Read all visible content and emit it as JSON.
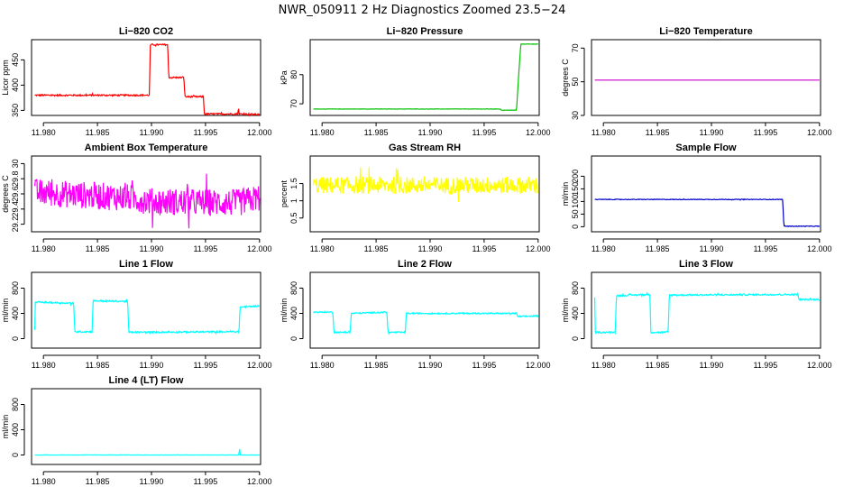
{
  "page": {
    "title": "NWR_050911  2 Hz Diagnostics Zoomed 23.5−24"
  },
  "chart_data": [
    {
      "type": "line",
      "title": "Li−820 CO2",
      "ylabel": "Licor ppm",
      "xlim": [
        11.9789,
        12.0001
      ],
      "ylim": [
        340,
        490
      ],
      "y_ticks": [
        350,
        400,
        450
      ],
      "x_ticks": [
        11.98,
        11.985,
        11.99,
        11.995,
        12.0
      ],
      "x_tick_labels": [
        "11.980",
        "11.985",
        "11.990",
        "11.995",
        "12.000"
      ],
      "color": "#ff0000",
      "noise": 1.5,
      "series": [
        {
          "name": "CO2",
          "points": [
            [
              11.9792,
              380
            ],
            [
              11.9898,
              380
            ],
            [
              11.9899,
              480
            ],
            [
              11.9915,
              480
            ],
            [
              11.9916,
              415
            ],
            [
              11.993,
              415
            ],
            [
              11.9931,
              377
            ],
            [
              11.9948,
              377
            ],
            [
              11.9949,
              343
            ],
            [
              11.998,
              343
            ],
            [
              11.99805,
              358
            ],
            [
              11.9981,
              343
            ],
            [
              12.0,
              342
            ]
          ]
        }
      ]
    },
    {
      "type": "line",
      "title": "Li−820 Pressure",
      "ylabel": "kPa",
      "xlim": [
        11.9789,
        12.0001
      ],
      "ylim": [
        66,
        92
      ],
      "y_ticks": [
        70,
        80
      ],
      "x_ticks": [
        11.98,
        11.985,
        11.99,
        11.995,
        12.0
      ],
      "x_tick_labels": [
        "11.980",
        "11.985",
        "11.990",
        "11.995",
        "12.000"
      ],
      "color": "#00c000",
      "noise": 0.05,
      "series": [
        {
          "name": "Pressure",
          "points": [
            [
              11.9792,
              68.2
            ],
            [
              11.9965,
              68.2
            ],
            [
              11.9966,
              67.8
            ],
            [
              11.998,
              67.8
            ],
            [
              11.9982,
              80
            ],
            [
              11.9984,
              90.5
            ],
            [
              12.0,
              90.5
            ]
          ]
        }
      ]
    },
    {
      "type": "line",
      "title": "Li−820 Temperature",
      "ylabel": "degrees C",
      "xlim": [
        11.9789,
        12.0001
      ],
      "ylim": [
        30,
        75
      ],
      "y_ticks": [
        30,
        50,
        70
      ],
      "x_ticks": [
        11.98,
        11.985,
        11.99,
        11.995,
        12.0
      ],
      "x_tick_labels": [
        "11.980",
        "11.985",
        "11.990",
        "11.995",
        "12.000"
      ],
      "color": "#cc00cc",
      "noise": 0,
      "series": [
        {
          "name": "Temperature",
          "points": [
            [
              11.9792,
              51
            ],
            [
              12.0,
              51
            ]
          ]
        }
      ]
    },
    {
      "type": "line",
      "title": "Ambient Box Temperature",
      "ylabel": "degrees C",
      "xlim": [
        11.9789,
        12.0001
      ],
      "ylim": [
        29.1,
        30.1
      ],
      "y_ticks": [
        29.2,
        29.4,
        29.6,
        29.8,
        30.0
      ],
      "x_ticks": [
        11.98,
        11.985,
        11.99,
        11.995,
        12.0
      ],
      "x_tick_labels": [
        "11.980",
        "11.985",
        "11.990",
        "11.995",
        "12.000"
      ],
      "color": "#ff00ff",
      "noise": 0.18,
      "series": [
        {
          "name": "Ambient",
          "points": [
            [
              11.9792,
              29.62
            ],
            [
              11.988,
              29.55
            ],
            [
              11.99,
              29.5
            ],
            [
              11.998,
              29.48
            ],
            [
              12.0,
              29.55
            ]
          ]
        }
      ]
    },
    {
      "type": "line",
      "title": "Gas Stream RH",
      "ylabel": "percent",
      "xlim": [
        11.9789,
        12.0001
      ],
      "ylim": [
        0.1,
        2.3
      ],
      "y_ticks": [
        0.5,
        1.0,
        1.5
      ],
      "x_ticks": [
        11.98,
        11.985,
        11.99,
        11.995,
        12.0
      ],
      "x_tick_labels": [
        "11.980",
        "11.985",
        "11.990",
        "11.995",
        "12.000"
      ],
      "color": "#ffff00",
      "noise": 0.25,
      "series": [
        {
          "name": "RH",
          "points": [
            [
              11.9792,
              1.45
            ],
            [
              12.0,
              1.45
            ]
          ]
        }
      ]
    },
    {
      "type": "line",
      "title": "Sample Flow",
      "ylabel": "ml/min",
      "xlim": [
        11.9789,
        12.0001
      ],
      "ylim": [
        -20,
        280
      ],
      "y_ticks": [
        0,
        50,
        100,
        150,
        200
      ],
      "x_ticks": [
        11.98,
        11.985,
        11.99,
        11.995,
        12.0
      ],
      "x_tick_labels": [
        "11.980",
        "11.985",
        "11.990",
        "11.995",
        "12.000"
      ],
      "color": "#0000cc",
      "noise": 1.2,
      "series": [
        {
          "name": "Sample",
          "points": [
            [
              11.9792,
              108
            ],
            [
              11.9966,
              108
            ],
            [
              11.9967,
              2
            ],
            [
              12.0,
              2
            ]
          ]
        }
      ]
    },
    {
      "type": "line",
      "title": "Line 1 Flow",
      "ylabel": "ml/min",
      "xlim": [
        11.9789,
        12.0001
      ],
      "ylim": [
        -150,
        1050
      ],
      "y_ticks": [
        0,
        400,
        800
      ],
      "x_ticks": [
        11.98,
        11.985,
        11.99,
        11.995,
        12.0
      ],
      "x_tick_labels": [
        "11.980",
        "11.985",
        "11.990",
        "11.995",
        "12.000"
      ],
      "color": "#00ffff",
      "noise": 12,
      "series": [
        {
          "name": "Line 1",
          "points": [
            [
              11.9792,
              130
            ],
            [
              11.97925,
              580
            ],
            [
              11.9828,
              560
            ],
            [
              11.9829,
              110
            ],
            [
              11.9845,
              110
            ],
            [
              11.9846,
              600
            ],
            [
              11.9878,
              590
            ],
            [
              11.9879,
              100
            ],
            [
              11.9981,
              110
            ],
            [
              11.9982,
              500
            ],
            [
              12.0,
              520
            ]
          ]
        }
      ]
    },
    {
      "type": "line",
      "title": "Line 2 Flow",
      "ylabel": "ml/min",
      "xlim": [
        11.9789,
        12.0001
      ],
      "ylim": [
        -150,
        1050
      ],
      "y_ticks": [
        0,
        400,
        800
      ],
      "x_ticks": [
        11.98,
        11.985,
        11.99,
        11.995,
        12.0
      ],
      "x_tick_labels": [
        "11.980",
        "11.985",
        "11.990",
        "11.995",
        "12.000"
      ],
      "color": "#00ffff",
      "noise": 10,
      "series": [
        {
          "name": "Line 2",
          "points": [
            [
              11.9792,
              420
            ],
            [
              11.981,
              420
            ],
            [
              11.9811,
              100
            ],
            [
              11.9826,
              100
            ],
            [
              11.9827,
              400
            ],
            [
              11.986,
              420
            ],
            [
              11.9861,
              100
            ],
            [
              11.9877,
              100
            ],
            [
              11.9878,
              400
            ],
            [
              11.998,
              400
            ],
            [
              11.9981,
              350
            ],
            [
              12.0,
              360
            ]
          ]
        }
      ]
    },
    {
      "type": "line",
      "title": "Line 3 Flow",
      "ylabel": "ml/min",
      "xlim": [
        11.9789,
        12.0001
      ],
      "ylim": [
        -150,
        1050
      ],
      "y_ticks": [
        0,
        400,
        800
      ],
      "x_ticks": [
        11.98,
        11.985,
        11.99,
        11.995,
        12.0
      ],
      "x_tick_labels": [
        "11.980",
        "11.985",
        "11.990",
        "11.995",
        "12.000"
      ],
      "color": "#00ffff",
      "noise": 12,
      "series": [
        {
          "name": "Line 3",
          "points": [
            [
              11.9792,
              650
            ],
            [
              11.97925,
              100
            ],
            [
              11.9811,
              100
            ],
            [
              11.9812,
              680
            ],
            [
              11.9843,
              700
            ],
            [
              11.9844,
              100
            ],
            [
              11.986,
              100
            ],
            [
              11.9861,
              690
            ],
            [
              11.998,
              700
            ],
            [
              11.9981,
              620
            ],
            [
              12.0,
              620
            ]
          ]
        }
      ]
    },
    {
      "type": "line",
      "title": "Line 4 (LT) Flow",
      "ylabel": "ml/min",
      "xlim": [
        11.9789,
        12.0001
      ],
      "ylim": [
        -150,
        1050
      ],
      "y_ticks": [
        0,
        400,
        800
      ],
      "x_ticks": [
        11.98,
        11.985,
        11.99,
        11.995,
        12.0
      ],
      "x_tick_labels": [
        "11.980",
        "11.985",
        "11.990",
        "11.995",
        "12.000"
      ],
      "color": "#00ffff",
      "noise": 2,
      "series": [
        {
          "name": "Line 4",
          "points": [
            [
              11.9792,
              0
            ],
            [
              11.9981,
              0
            ],
            [
              11.99815,
              140
            ],
            [
              11.9982,
              0
            ],
            [
              12.0,
              0
            ]
          ]
        }
      ]
    }
  ]
}
